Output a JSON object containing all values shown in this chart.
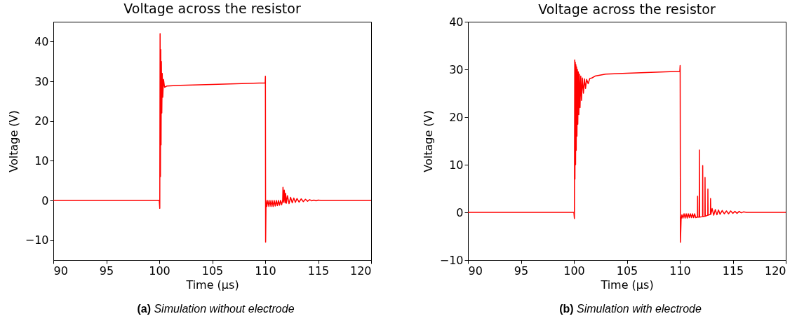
{
  "chart_data": [
    {
      "type": "line",
      "title": "Voltage across the resistor",
      "xlabel": "Time (μs)",
      "ylabel": "Voltage (V)",
      "color": "#ff0000",
      "xlim": [
        90,
        120
      ],
      "xticks": [
        90,
        95,
        100,
        105,
        110,
        115,
        120
      ],
      "ylim": [
        -15,
        45
      ],
      "yticks": [
        -10,
        0,
        10,
        20,
        30,
        40
      ],
      "annotations": [
        "(a) Simulation without electrode"
      ],
      "x": [
        90,
        100.0,
        100.05,
        100.08,
        100.11,
        100.14,
        100.17,
        100.2,
        100.24,
        100.28,
        100.33,
        100.4,
        100.5,
        100.7,
        102,
        105,
        110,
        110.02,
        110.04,
        110.08,
        110.15,
        110.25,
        110.35,
        110.45,
        110.55,
        110.65,
        110.75,
        110.85,
        110.95,
        111.05,
        111.15,
        111.25,
        111.35,
        111.45,
        111.55,
        111.65,
        111.68,
        111.75,
        111.8,
        111.88,
        111.93,
        112,
        112.1,
        112.25,
        112.4,
        112.55,
        112.7,
        112.85,
        113,
        113.2,
        113.4,
        113.6,
        113.8,
        114.0,
        114.2,
        114.4,
        114.6,
        114.8,
        115,
        115.3,
        120
      ],
      "values": [
        0,
        0,
        -2,
        42,
        6,
        38,
        14,
        35,
        22,
        32,
        26,
        30.5,
        28.5,
        28.8,
        29,
        29.2,
        29.6,
        31.3,
        -10.5,
        0,
        -1.5,
        0,
        -1.5,
        0,
        -1.5,
        0,
        -1.5,
        0,
        -1.4,
        0,
        -1.3,
        0,
        -1.2,
        0,
        -1.1,
        0,
        3.3,
        -0.5,
        2.6,
        -0.6,
        1.8,
        -0.7,
        1.2,
        -0.8,
        0.8,
        -0.6,
        0.6,
        -0.5,
        0.5,
        -0.4,
        0.4,
        -0.3,
        0.3,
        -0.2,
        0.2,
        -0.1,
        0.1,
        -0.1,
        0.1,
        0,
        0
      ]
    },
    {
      "type": "line",
      "title": "Voltage across the resistor",
      "xlabel": "Time (μs)",
      "ylabel": "Voltage (V)",
      "color": "#ff0000",
      "xlim": [
        90,
        120
      ],
      "xticks": [
        90,
        95,
        100,
        105,
        110,
        115,
        120
      ],
      "ylim": [
        -10,
        40
      ],
      "yticks": [
        -10,
        0,
        10,
        20,
        30,
        40
      ],
      "annotations": [
        "(b) Simulation with electrode"
      ],
      "x": [
        90,
        100,
        100.05,
        100.08,
        100.1,
        100.13,
        100.16,
        100.19,
        100.22,
        100.25,
        100.29,
        100.33,
        100.37,
        100.42,
        100.47,
        100.52,
        100.58,
        100.65,
        100.72,
        100.8,
        100.9,
        101,
        101.1,
        101.2,
        101.35,
        101.5,
        101.7,
        102,
        103,
        105,
        110,
        110.03,
        110.06,
        110.12,
        110.2,
        110.3,
        110.4,
        110.5,
        110.6,
        110.7,
        110.8,
        110.9,
        111,
        111.1,
        111.2,
        111.3,
        111.4,
        111.5,
        111.67,
        111.68,
        111.7,
        111.84,
        111.85,
        111.87,
        112.15,
        112.16,
        112.18,
        112.37,
        112.38,
        112.4,
        112.64,
        112.65,
        112.67,
        112.89,
        112.9,
        112.93,
        113.05,
        113.2,
        113.35,
        113.5,
        113.65,
        113.8,
        114,
        114.2,
        114.4,
        114.6,
        114.8,
        115,
        115.2,
        115.4,
        115.6,
        115.8,
        116,
        116.3,
        120
      ],
      "values": [
        0,
        0,
        -1.3,
        32,
        7,
        31.5,
        10,
        31,
        13,
        30.5,
        16,
        30,
        18.5,
        29.5,
        20.5,
        29,
        22,
        28.6,
        23.5,
        28.2,
        25,
        28,
        26,
        27.9,
        27,
        28.1,
        28.2,
        28.6,
        29,
        29.2,
        29.6,
        30.8,
        -6.3,
        -1.5,
        -0.5,
        -1.2,
        -0.3,
        -1.2,
        -0.3,
        -1.2,
        -0.3,
        -1.1,
        -0.3,
        -1.1,
        -0.3,
        -1.1,
        -0.3,
        -1.1,
        -1,
        3.4,
        -1,
        -1,
        13.1,
        -1,
        -0.9,
        9.8,
        -0.9,
        -0.8,
        7.3,
        -0.8,
        -0.6,
        4.9,
        -0.6,
        -0.4,
        2.9,
        -0.4,
        0.8,
        -0.6,
        0.6,
        -0.5,
        0.5,
        -0.4,
        0.4,
        -0.3,
        0.3,
        -0.3,
        0.3,
        -0.2,
        0.2,
        -0.2,
        0.2,
        -0.1,
        0.1,
        0,
        0
      ]
    }
  ]
}
